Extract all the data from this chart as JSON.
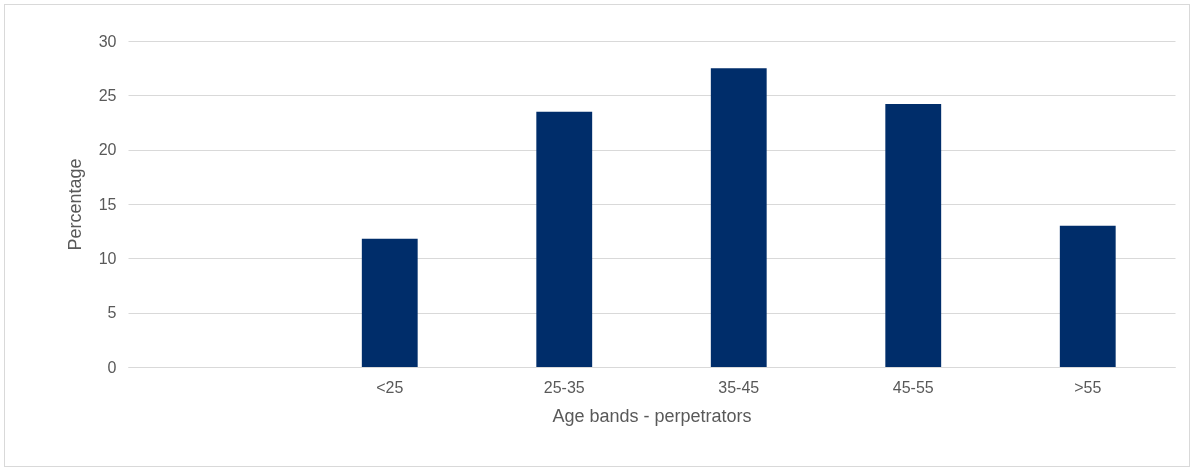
{
  "chart_data": {
    "type": "bar",
    "xlabel": "Age bands - perpetrators",
    "ylabel": "Percentage",
    "categories": [
      null,
      "<25",
      "25-35",
      "35-45",
      "45-55",
      ">55"
    ],
    "values": [
      null,
      11.8,
      23.5,
      27.5,
      24.2,
      13.0
    ],
    "color": "#002d6a",
    "ylim": [
      0,
      30
    ],
    "yticks": [
      0,
      5,
      10,
      15,
      20,
      25,
      30
    ],
    "grid": "y"
  }
}
